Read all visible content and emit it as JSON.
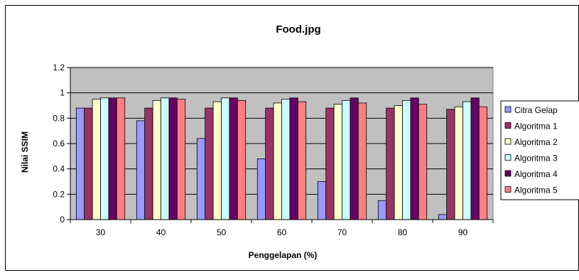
{
  "chart_data": {
    "type": "bar",
    "title": "Food.jpg",
    "xlabel": "Penggelapan (%)",
    "ylabel": "Nilai SSIM",
    "categories": [
      "30",
      "40",
      "50",
      "60",
      "70",
      "80",
      "90"
    ],
    "ylim": [
      0,
      1.2
    ],
    "yticks": [
      "0",
      "0.2",
      "0.4",
      "0.6",
      "0.8",
      "1",
      "1.2"
    ],
    "grid": true,
    "legend_position": "right",
    "plot_background": "#c0c0c0",
    "series": [
      {
        "name": "Citra Gelap",
        "color": "#9999ff",
        "values": [
          0.88,
          0.78,
          0.64,
          0.48,
          0.3,
          0.15,
          0.04
        ]
      },
      {
        "name": "Algoritma 1",
        "color": "#993366",
        "values": [
          0.88,
          0.88,
          0.88,
          0.88,
          0.88,
          0.88,
          0.87
        ]
      },
      {
        "name": "Algoritma 2",
        "color": "#ffffcc",
        "values": [
          0.95,
          0.94,
          0.93,
          0.92,
          0.91,
          0.9,
          0.89
        ]
      },
      {
        "name": "Algoritma 3",
        "color": "#ccffff",
        "values": [
          0.96,
          0.96,
          0.96,
          0.95,
          0.94,
          0.94,
          0.93
        ]
      },
      {
        "name": "Algoritma 4",
        "color": "#660066",
        "values": [
          0.96,
          0.96,
          0.96,
          0.96,
          0.96,
          0.96,
          0.96
        ]
      },
      {
        "name": "Algoritma 5",
        "color": "#ff8080",
        "values": [
          0.96,
          0.95,
          0.94,
          0.93,
          0.92,
          0.91,
          0.89
        ]
      }
    ]
  }
}
